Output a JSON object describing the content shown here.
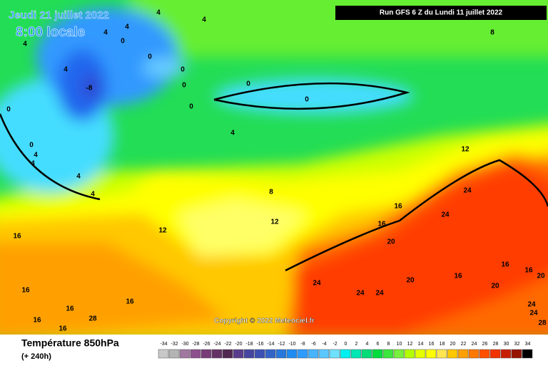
{
  "header": {
    "date": "Jeudi 21 juillet 2022",
    "time": "8:00 locale",
    "run": "Run GFS 6 Z du Lundi 11 juillet 2022"
  },
  "copyright": "Copyright © 2022 Meteociel.fr",
  "footer": {
    "title": "Température 850hPa",
    "subtitle": "(+ 240h)"
  },
  "colorbar": {
    "values": [
      -34,
      -32,
      -30,
      -28,
      -26,
      -24,
      -22,
      -20,
      -18,
      -16,
      -14,
      -12,
      -10,
      -8,
      -6,
      -4,
      -2,
      0,
      2,
      4,
      6,
      8,
      10,
      12,
      14,
      16,
      18,
      20,
      22,
      24,
      26,
      28,
      30,
      32,
      34
    ],
    "colors": [
      "#c8c8c8",
      "#b4b4b4",
      "#a078a0",
      "#8c508c",
      "#783c78",
      "#643264",
      "#502850",
      "#5a3c8c",
      "#4646a0",
      "#3c50b4",
      "#3264c8",
      "#2878dc",
      "#1e8cf0",
      "#2d9bff",
      "#46b4ff",
      "#5ac8ff",
      "#6ee1ff",
      "#00f0f0",
      "#00e6b4",
      "#00dc78",
      "#00dc3c",
      "#3ce63c",
      "#78f03c",
      "#b4ff00",
      "#e6ff00",
      "#ffff00",
      "#ffe650",
      "#ffc800",
      "#ffa000",
      "#ff7800",
      "#ff5000",
      "#f03200",
      "#c81e00",
      "#961400",
      "#000000"
    ]
  },
  "contours": [
    "4",
    "4",
    "4",
    "4",
    "4",
    "-8",
    "0",
    "0",
    "0",
    "0",
    "0",
    "0",
    "0",
    "0",
    "0",
    "4",
    "4",
    "4",
    "4",
    "4",
    "4",
    "8",
    "8",
    "12",
    "12",
    "12",
    "16",
    "16",
    "16",
    "16",
    "16",
    "16",
    "16",
    "16",
    "16",
    "28",
    "16",
    "20",
    "20",
    "20",
    "24",
    "24",
    "24",
    "24",
    "24",
    "24",
    "24",
    "28",
    "16",
    "20"
  ]
}
